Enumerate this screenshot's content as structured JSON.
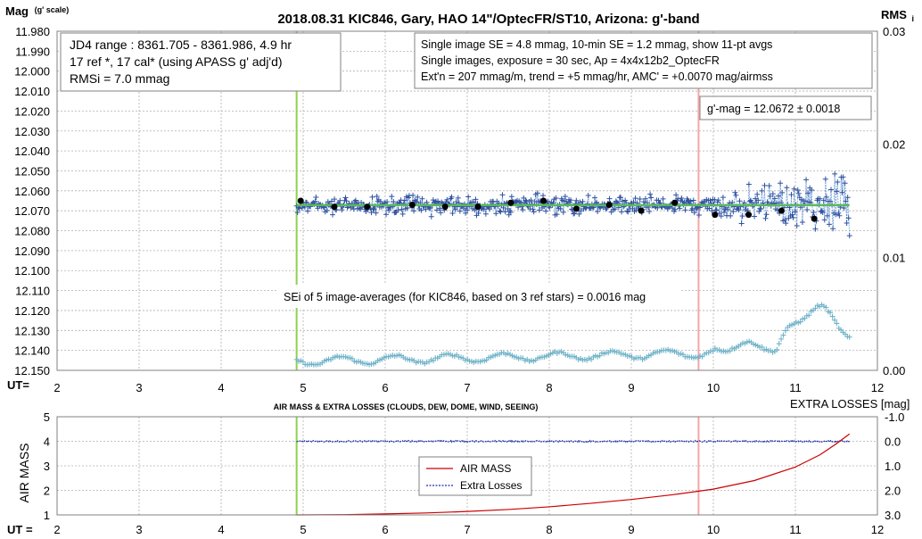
{
  "chart_data": [
    {
      "type": "scatter",
      "title": "2018.08.31  KIC846,  Gary, HAO 14\"/OptecFR/ST10,  Arizona:  g'-band",
      "ylabel": "Mag",
      "ylabel_sub": "(g' scale)",
      "y2label": "RMS",
      "y2label_sub": "i",
      "xlabel": "UT=",
      "xlim": [
        2,
        12
      ],
      "ylim": [
        12.15,
        11.98
      ],
      "y2lim": [
        0.0,
        0.03
      ],
      "grid": true,
      "x_ticks": [
        "2",
        "3",
        "4",
        "5",
        "6",
        "7",
        "8",
        "9",
        "10",
        "11",
        "12"
      ],
      "y_ticks": [
        "11.980",
        "11.990",
        "12.000",
        "12.010",
        "12.020",
        "12.030",
        "12.040",
        "12.050",
        "12.060",
        "12.070",
        "12.080",
        "12.090",
        "12.100",
        "12.110",
        "12.120",
        "12.130",
        "12.140",
        "12.150"
      ],
      "y2_ticks": [
        "0.03",
        "0.02",
        "0.01",
        "0.00"
      ],
      "info_left": [
        "JD4 range : 8361.705 - 8361.986,  4.9  hr",
        "17 ref *, 17 cal* (using APASS g' adj'd)",
        "RMSi = 7.0 mmag"
      ],
      "info_right": [
        "Single image SE = 4.8 mmag, 10-min SE = 1.2 mmag, show  11-pt avgs",
        "Single images, exposure = 30 sec, Ap = 4x4x12b2_OptecFR",
        "Ext'n = 207 mmag/m, trend =  +5 mmag/hr, AMC' = +0.0070 mag/airmss"
      ],
      "gmag_label": "g'-mag = 12.0672 ± 0.0018",
      "sei_label": "SEi of 5 image-averages (for KIC846, based on 3 ref stars) = 0.0016  mag",
      "vertical_markers": [
        {
          "x": 4.92,
          "color": "#8fd14f"
        },
        {
          "x": 9.82,
          "color": "#f4a6a6"
        }
      ],
      "series": [
        {
          "marker": "plus",
          "color": "#2f52a0",
          "generated": "single-image magnitudes between UT 4.92 and 11.66, mean 12.0672; scatter ~0.004 mag before UT 9.8 rising to ~0.015 mag after"
        },
        {
          "name": "",
          "marker": "dot",
          "color": "#000000",
          "x": [
            4.97,
            5.38,
            5.78,
            6.33,
            6.73,
            7.13,
            7.53,
            7.93,
            8.33,
            8.73,
            9.12,
            9.53,
            10.02,
            10.43,
            10.83,
            11.23
          ],
          "y": [
            12.065,
            12.068,
            12.068,
            12.067,
            12.068,
            12.068,
            12.066,
            12.065,
            12.069,
            12.067,
            12.07,
            12.066,
            12.072,
            12.072,
            12.07,
            12.074
          ]
        },
        {
          "name": "",
          "marker": "line",
          "color": "#5cb85c",
          "x": [
            4.92,
            11.66
          ],
          "y": [
            12.0672,
            12.0672
          ]
        },
        {
          "marker": "plus",
          "color": "#6fb3c8",
          "axis": "right",
          "generated": "RMSi of 5 image-averages, ~0.0008 at UT 5 wavy to ~0.0025 at UT 10, rising to ~0.0055 near UT 11.3"
        }
      ]
    },
    {
      "type": "line",
      "title": "AIR MASS & EXTRA LOSSES (CLOUDS, DEW, DOME, WIND, SEEING)",
      "ylabel": "AIR MASS",
      "y2label": "EXTRA LOSSES [mag]",
      "xlabel": "UT =",
      "xlim": [
        2,
        12
      ],
      "ylim": [
        1,
        5
      ],
      "y2lim": [
        -1.0,
        3.0
      ],
      "grid": true,
      "x_ticks": [
        "2",
        "3",
        "4",
        "5",
        "6",
        "7",
        "8",
        "9",
        "10",
        "11",
        "12"
      ],
      "y_ticks": [
        "5",
        "4",
        "3",
        "2",
        "1"
      ],
      "y2_ticks": [
        "-1.0",
        "0.0",
        "1.0",
        "2.0",
        "3.0"
      ],
      "legend": [
        "AIR MASS",
        "Extra Losses"
      ],
      "legend_placement": "center",
      "vertical_markers": [
        {
          "x": 4.92,
          "color": "#8fd14f"
        },
        {
          "x": 9.82,
          "color": "#f4a6a6"
        }
      ],
      "series": [
        {
          "name": "AIR MASS",
          "color": "#cc0000",
          "x": [
            4.92,
            5.5,
            6.0,
            6.5,
            7.0,
            7.5,
            8.0,
            8.5,
            9.0,
            9.5,
            10.0,
            10.5,
            11.0,
            11.3,
            11.5,
            11.66
          ],
          "y": [
            1.0,
            1.01,
            1.04,
            1.08,
            1.14,
            1.22,
            1.33,
            1.47,
            1.63,
            1.82,
            2.05,
            2.4,
            2.95,
            3.45,
            3.9,
            4.3
          ]
        },
        {
          "name": "Extra Losses",
          "color": "#1f2fa0",
          "axis": "right",
          "generated": "extra losses near 0.0 mag with tiny jitter from UT 4.92 to 11.66"
        }
      ]
    }
  ]
}
